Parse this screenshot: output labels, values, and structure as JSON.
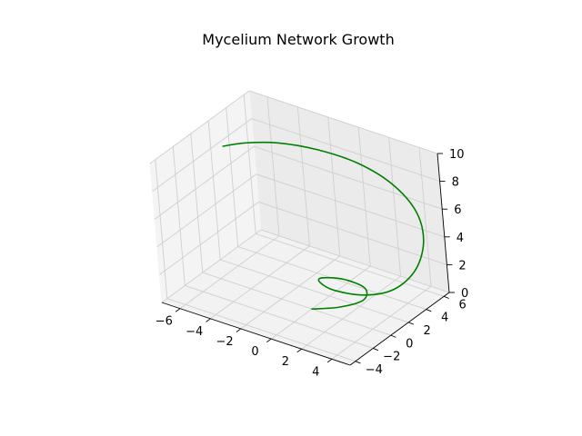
{
  "chart_data": {
    "type": "line3d",
    "title": "Mycelium Network Growth",
    "xlabel": "",
    "ylabel": "",
    "zlabel": "",
    "xlim": [
      -7.2,
      5.2
    ],
    "ylim": [
      -4.6,
      6.6
    ],
    "zlim": [
      0,
      10
    ],
    "x_ticks": [
      -6,
      -4,
      -2,
      0,
      2,
      4
    ],
    "y_ticks": [
      -4,
      -2,
      0,
      2,
      4,
      6
    ],
    "z_ticks": [
      0,
      2,
      4,
      6,
      8,
      10
    ],
    "x_tick_labels": [
      "−6",
      "−4",
      "−2",
      "0",
      "2",
      "4"
    ],
    "y_tick_labels": [
      "−4",
      "−2",
      "0",
      "2",
      "4",
      "6"
    ],
    "z_tick_labels": [
      "0",
      "2",
      "4",
      "6",
      "8",
      "10"
    ],
    "grid": true,
    "series": [
      {
        "color": "#008000",
        "points_xyz": [
          [
            0.0,
            0.0,
            0.0
          ],
          [
            1.3,
            1.0,
            0.15
          ],
          [
            2.1,
            2.3,
            0.35
          ],
          [
            1.6,
            3.3,
            0.55
          ],
          [
            0.3,
            3.2,
            0.75
          ],
          [
            -0.6,
            2.3,
            0.95
          ],
          [
            -0.2,
            1.4,
            1.2
          ],
          [
            1.2,
            0.7,
            1.45
          ],
          [
            3.2,
            0.8,
            1.8
          ],
          [
            4.6,
            1.7,
            2.3
          ],
          [
            5.2,
            3.2,
            3.2
          ],
          [
            4.9,
            4.8,
            4.4
          ],
          [
            3.8,
            6.0,
            5.6
          ],
          [
            2.0,
            6.5,
            6.7
          ],
          [
            0.0,
            6.2,
            7.6
          ],
          [
            -2.0,
            5.2,
            8.3
          ],
          [
            -3.8,
            3.8,
            8.8
          ],
          [
            -5.0,
            2.2,
            9.1
          ],
          [
            -5.6,
            0.8,
            9.3
          ]
        ]
      }
    ]
  }
}
